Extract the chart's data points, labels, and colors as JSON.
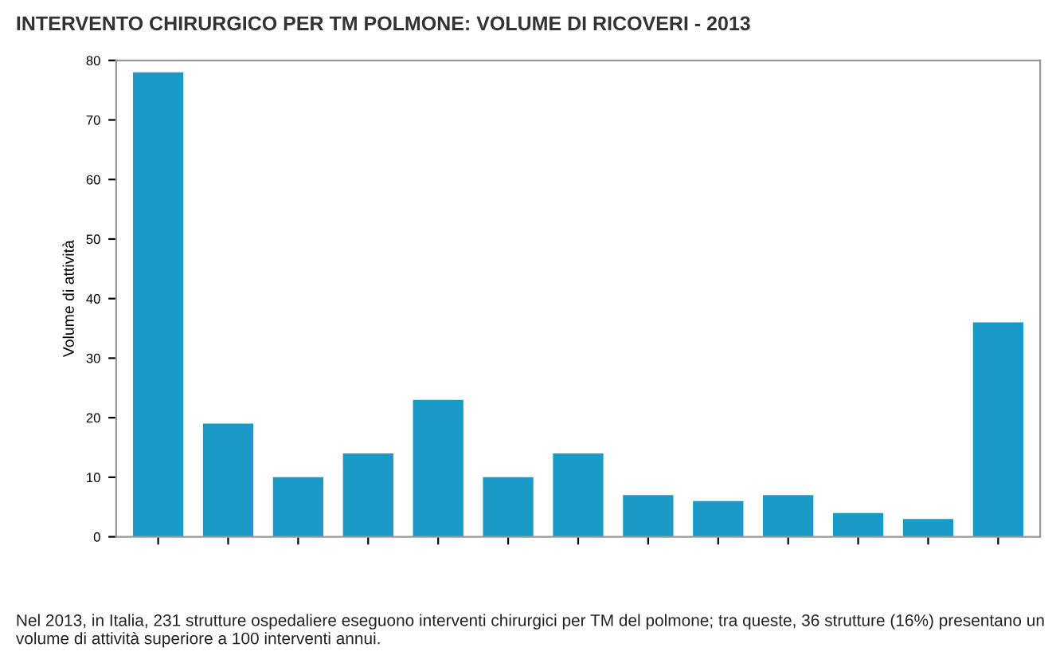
{
  "chart_data": {
    "type": "bar",
    "title": "INTERVENTO CHIRURGICO PER TM POLMONE: VOLUME DI RICOVERI - 2013",
    "ylabel": "Volume di attività",
    "categories": [
      null,
      null,
      null,
      null,
      null,
      null,
      null,
      null,
      null,
      null,
      null,
      null,
      null
    ],
    "values": [
      78,
      19,
      10,
      14,
      23,
      10,
      14,
      7,
      6,
      7,
      4,
      3,
      36
    ],
    "color": "#1a9bc7",
    "ylim": [
      0,
      80
    ],
    "yticks": [
      0,
      10,
      20,
      30,
      40,
      50,
      60,
      70,
      80
    ],
    "grid": false,
    "annotations": [
      "Nel 2013, in Italia, 231 strutture ospedaliere eseguono interventi chirurgici per TM del polmone; tra queste, 36 strutture (16%) presentano un volume di attività superiore a 100 interventi annui."
    ]
  }
}
